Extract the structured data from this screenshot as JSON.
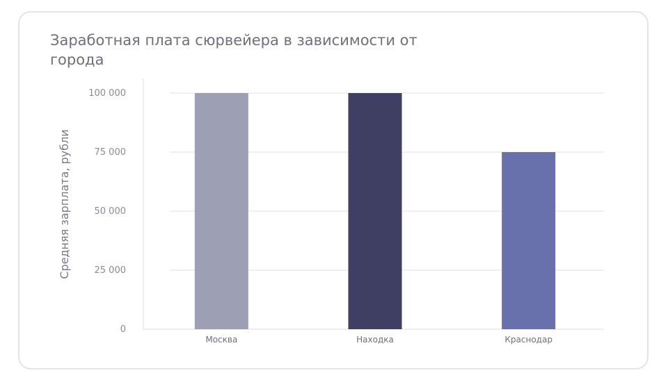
{
  "chart_data": {
    "type": "bar",
    "title": "Заработная плата сюрвейера в зависимости от города",
    "xlabel": "",
    "ylabel": "Средняя зарплата, рубли",
    "categories": [
      "Москва",
      "Находка",
      "Краснодар"
    ],
    "values": [
      100000,
      100000,
      75000
    ],
    "colors": [
      "#9d9fb5",
      "#3f3f63",
      "#6871ab"
    ],
    "ylim": [
      0,
      100000
    ],
    "yticks": [
      0,
      25000,
      50000,
      75000,
      100000
    ],
    "ytick_labels": [
      "0",
      "25 000",
      "50 000",
      "75 000",
      "100 000"
    ],
    "grid": true,
    "legend": "none"
  }
}
